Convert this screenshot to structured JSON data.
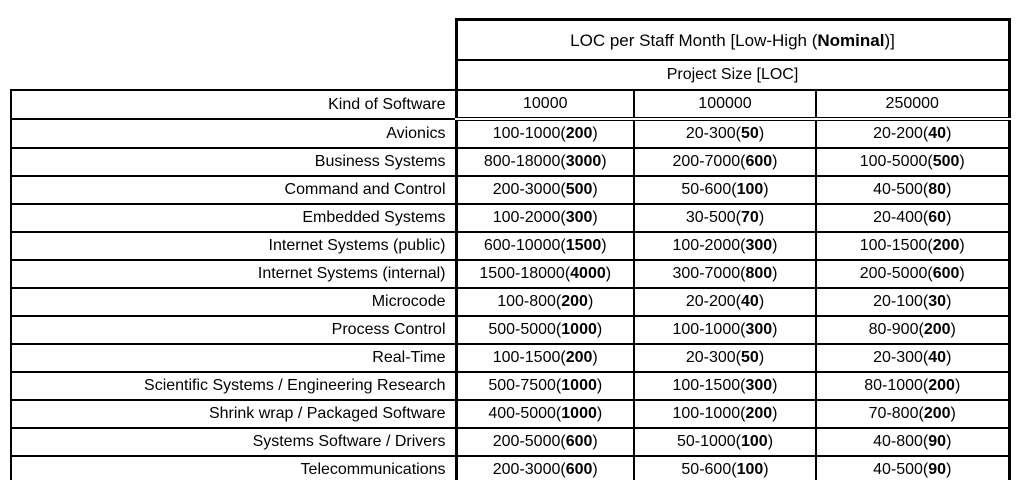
{
  "table": {
    "title": {
      "prefix": "LOC per Staff Month [Low-High (",
      "bold": "Nominal",
      "suffix": ")]"
    },
    "subtitle": "Project Size [LOC]",
    "corner_header": "Kind of Software",
    "size_headers": [
      "10000",
      "100000",
      "250000"
    ],
    "rows": [
      {
        "kind": "Avionics",
        "cells": [
          {
            "low_high": "100-1000",
            "nominal": "200"
          },
          {
            "low_high": "20-300",
            "nominal": "50"
          },
          {
            "low_high": "20-200",
            "nominal": "40"
          }
        ]
      },
      {
        "kind": "Business Systems",
        "cells": [
          {
            "low_high": "800-18000",
            "nominal": "3000"
          },
          {
            "low_high": "200-7000",
            "nominal": "600"
          },
          {
            "low_high": "100-5000",
            "nominal": "500"
          }
        ]
      },
      {
        "kind": "Command and Control",
        "cells": [
          {
            "low_high": "200-3000",
            "nominal": "500"
          },
          {
            "low_high": "50-600",
            "nominal": "100"
          },
          {
            "low_high": "40-500",
            "nominal": "80"
          }
        ]
      },
      {
        "kind": "Embedded Systems",
        "cells": [
          {
            "low_high": "100-2000",
            "nominal": "300"
          },
          {
            "low_high": "30-500",
            "nominal": "70"
          },
          {
            "low_high": "20-400",
            "nominal": "60"
          }
        ]
      },
      {
        "kind": "Internet Systems (public)",
        "cells": [
          {
            "low_high": "600-10000",
            "nominal": "1500"
          },
          {
            "low_high": "100-2000",
            "nominal": "300"
          },
          {
            "low_high": "100-1500",
            "nominal": "200"
          }
        ]
      },
      {
        "kind": "Internet Systems (internal)",
        "cells": [
          {
            "low_high": "1500-18000",
            "nominal": "4000"
          },
          {
            "low_high": "300-7000",
            "nominal": "800"
          },
          {
            "low_high": "200-5000",
            "nominal": "600"
          }
        ]
      },
      {
        "kind": "Microcode",
        "cells": [
          {
            "low_high": "100-800",
            "nominal": "200"
          },
          {
            "low_high": "20-200",
            "nominal": "40"
          },
          {
            "low_high": "20-100",
            "nominal": "30"
          }
        ]
      },
      {
        "kind": "Process Control",
        "cells": [
          {
            "low_high": "500-5000",
            "nominal": "1000"
          },
          {
            "low_high": "100-1000",
            "nominal": "300"
          },
          {
            "low_high": "80-900",
            "nominal": "200"
          }
        ]
      },
      {
        "kind": "Real-Time",
        "cells": [
          {
            "low_high": "100-1500",
            "nominal": "200"
          },
          {
            "low_high": "20-300",
            "nominal": "50"
          },
          {
            "low_high": "20-300",
            "nominal": "40"
          }
        ]
      },
      {
        "kind": "Scientific Systems / Engineering Research",
        "cells": [
          {
            "low_high": "500-7500",
            "nominal": "1000"
          },
          {
            "low_high": "100-1500",
            "nominal": "300"
          },
          {
            "low_high": "80-1000",
            "nominal": "200"
          }
        ]
      },
      {
        "kind": "Shrink wrap / Packaged Software",
        "cells": [
          {
            "low_high": "400-5000",
            "nominal": "1000"
          },
          {
            "low_high": "100-1000",
            "nominal": "200"
          },
          {
            "low_high": "70-800",
            "nominal": "200"
          }
        ]
      },
      {
        "kind": "Systems Software / Drivers",
        "cells": [
          {
            "low_high": "200-5000",
            "nominal": "600"
          },
          {
            "low_high": "50-1000",
            "nominal": "100"
          },
          {
            "low_high": "40-800",
            "nominal": "90"
          }
        ]
      },
      {
        "kind": "Telecommunications",
        "cells": [
          {
            "low_high": "200-3000",
            "nominal": "600"
          },
          {
            "low_high": "50-600",
            "nominal": "100"
          },
          {
            "low_high": "40-500",
            "nominal": "90"
          }
        ]
      }
    ]
  }
}
